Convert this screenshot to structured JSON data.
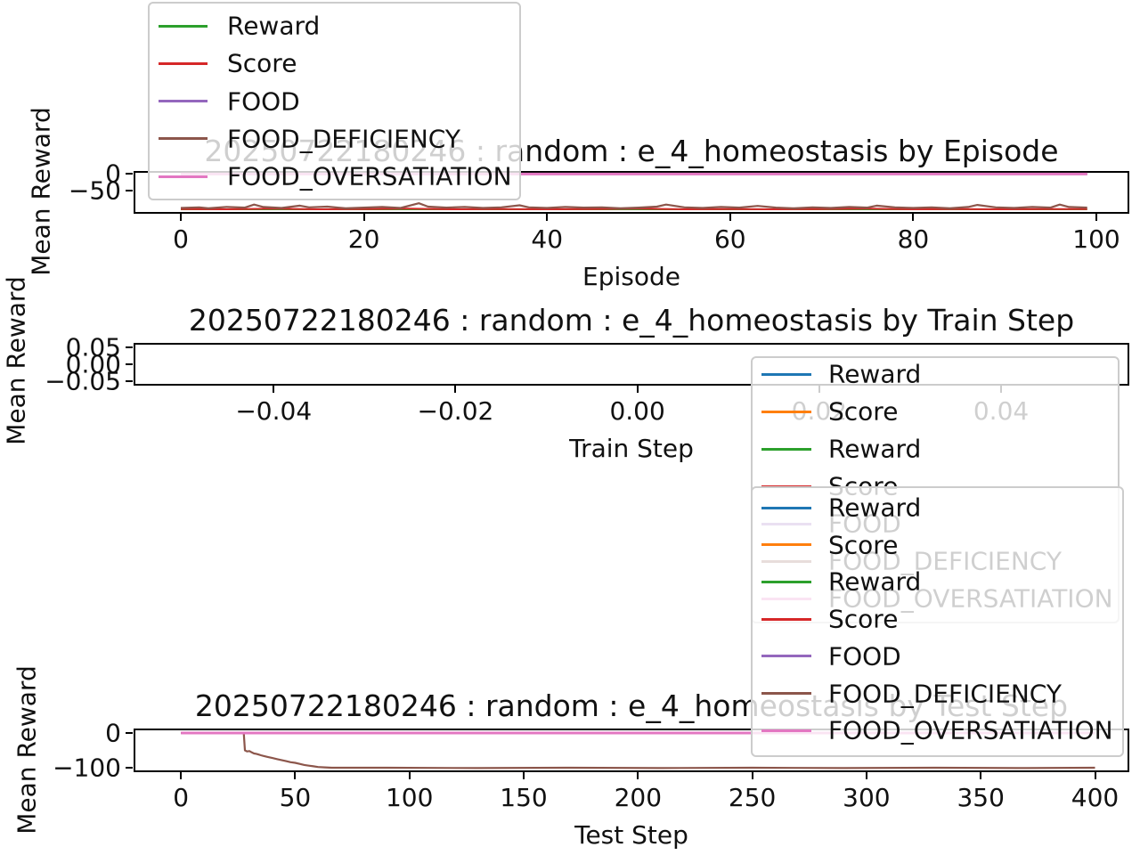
{
  "colors": {
    "blue": "#1f77b4",
    "orange": "#ff7f0e",
    "green": "#2ca02c",
    "red": "#d62728",
    "purple": "#9467bd",
    "brown": "#8c564b",
    "pink": "#e377c2",
    "spine": "#000000",
    "faded_text": "#c9c9c9",
    "legend_border": "#cccccc"
  },
  "chart_data": [
    {
      "id": "by-episode",
      "type": "line",
      "title": "20250722180246 : random : e_4_homeostasis by Episode",
      "xlabel": "Episode",
      "ylabel": "Mean Reward",
      "xlim": [
        -5.16,
        103.6
      ],
      "ylim": [
        -117,
        9
      ],
      "grid": false,
      "xticks": [
        {
          "v": 0,
          "label": "0"
        },
        {
          "v": 20,
          "label": "20"
        },
        {
          "v": 40,
          "label": "40"
        },
        {
          "v": 60,
          "label": "60"
        },
        {
          "v": 80,
          "label": "80"
        },
        {
          "v": 100,
          "label": "100"
        }
      ],
      "yticks": [
        {
          "v": 0,
          "label": "0"
        },
        {
          "v": -50,
          "label": "−50"
        }
      ],
      "legend": {
        "loc": "upper left",
        "entries": [
          {
            "label": "Reward",
            "color": "green"
          },
          {
            "label": "Score",
            "color": "red"
          },
          {
            "label": "FOOD",
            "color": "purple"
          },
          {
            "label": "FOOD_DEFICIENCY",
            "color": "brown"
          },
          {
            "label": "FOOD_OVERSATIATION",
            "color": "pink"
          }
        ]
      },
      "series": [
        {
          "name": "Reward",
          "color": "blue",
          "lw": 2,
          "points": [
            [
              0,
              0
            ],
            [
              99,
              0
            ]
          ]
        },
        {
          "name": "Score",
          "color": "orange",
          "lw": 2,
          "points": [
            [
              0,
              0
            ],
            [
              99,
              0
            ]
          ]
        },
        {
          "name": "Reward",
          "color": "green",
          "lw": 2,
          "points": [
            [
              0,
              -104
            ],
            [
              99,
              -104
            ]
          ]
        },
        {
          "name": "Score",
          "color": "red",
          "lw": 2,
          "points": [
            [
              0,
              -103
            ],
            [
              5,
              -104
            ],
            [
              10,
              -102
            ],
            [
              15,
              -104
            ],
            [
              20,
              -103
            ],
            [
              25,
              -102
            ],
            [
              30,
              -104
            ],
            [
              35,
              -103
            ],
            [
              40,
              -104
            ],
            [
              45,
              -103
            ],
            [
              50,
              -102
            ],
            [
              55,
              -104
            ],
            [
              60,
              -103
            ],
            [
              65,
              -104
            ],
            [
              70,
              -103
            ],
            [
              75,
              -102
            ],
            [
              80,
              -104
            ],
            [
              85,
              -103
            ],
            [
              90,
              -104
            ],
            [
              95,
              -103
            ],
            [
              99,
              -103
            ]
          ]
        },
        {
          "name": "FOOD",
          "color": "purple",
          "lw": 2,
          "points": [
            [
              0,
              0
            ],
            [
              99,
              0
            ]
          ]
        },
        {
          "name": "FOOD_DEFICIENCY",
          "color": "brown",
          "lw": 2.2,
          "points": [
            [
              0,
              -100
            ],
            [
              2,
              -98
            ],
            [
              3,
              -101
            ],
            [
              5,
              -97
            ],
            [
              7,
              -99
            ],
            [
              8,
              -90
            ],
            [
              9,
              -97
            ],
            [
              11,
              -100
            ],
            [
              13,
              -93
            ],
            [
              14,
              -98
            ],
            [
              16,
              -96
            ],
            [
              18,
              -101
            ],
            [
              20,
              -99
            ],
            [
              22,
              -97
            ],
            [
              24,
              -100
            ],
            [
              26,
              -86
            ],
            [
              27,
              -96
            ],
            [
              29,
              -99
            ],
            [
              31,
              -97
            ],
            [
              33,
              -100
            ],
            [
              35,
              -98
            ],
            [
              37,
              -92
            ],
            [
              38,
              -98
            ],
            [
              40,
              -100
            ],
            [
              42,
              -97
            ],
            [
              44,
              -99
            ],
            [
              46,
              -98
            ],
            [
              48,
              -101
            ],
            [
              50,
              -99
            ],
            [
              52,
              -96
            ],
            [
              53,
              -90
            ],
            [
              55,
              -98
            ],
            [
              57,
              -100
            ],
            [
              59,
              -97
            ],
            [
              61,
              -99
            ],
            [
              63,
              -94
            ],
            [
              65,
              -99
            ],
            [
              67,
              -101
            ],
            [
              69,
              -98
            ],
            [
              71,
              -100
            ],
            [
              73,
              -97
            ],
            [
              75,
              -99
            ],
            [
              76,
              -93
            ],
            [
              78,
              -98
            ],
            [
              80,
              -100
            ],
            [
              82,
              -98
            ],
            [
              84,
              -101
            ],
            [
              86,
              -97
            ],
            [
              87,
              -91
            ],
            [
              89,
              -98
            ],
            [
              91,
              -100
            ],
            [
              93,
              -97
            ],
            [
              95,
              -99
            ],
            [
              96,
              -90
            ],
            [
              97,
              -97
            ],
            [
              99,
              -99
            ]
          ]
        },
        {
          "name": "FOOD_OVERSATIATION",
          "color": "pink",
          "lw": 3,
          "points": [
            [
              0,
              0
            ],
            [
              99,
              0
            ]
          ]
        }
      ]
    },
    {
      "id": "by-train-step",
      "type": "line",
      "title": "20250722180246 : random : e_4_homeostasis by Train Step",
      "xlabel": "Train Step",
      "ylabel": "Mean Reward",
      "xlim": [
        -0.0554,
        0.0541
      ],
      "ylim": [
        -0.063,
        0.063
      ],
      "grid": false,
      "xticks": [
        {
          "v": -0.04,
          "label": "−0.04"
        },
        {
          "v": -0.02,
          "label": "−0.02"
        },
        {
          "v": 0.0,
          "label": "0.00"
        },
        {
          "v": 0.02,
          "label": "0.02"
        },
        {
          "v": 0.04,
          "label": "0.04"
        }
      ],
      "yticks": [
        {
          "v": 0.05,
          "label": "0.05"
        },
        {
          "v": 0.0,
          "label": "0.00"
        },
        {
          "v": -0.05,
          "label": "−0.05"
        }
      ],
      "legend": {
        "loc": "right",
        "entries": [
          {
            "label": "Reward",
            "color": "blue"
          },
          {
            "label": "Score",
            "color": "orange"
          },
          {
            "label": "Reward",
            "color": "green"
          },
          {
            "label": "Score",
            "color": "red"
          },
          {
            "label": "FOOD",
            "color": "purple"
          },
          {
            "label": "FOOD_DEFICIENCY",
            "color": "brown"
          },
          {
            "label": "FOOD_OVERSATIATION",
            "color": "pink"
          }
        ]
      },
      "series": []
    },
    {
      "id": "by-test-step",
      "type": "line",
      "title": "20250722180246 : random : e_4_homeostasis by Test Step",
      "xlabel": "Test Step",
      "ylabel": "Mean Reward",
      "xlim": [
        -20.7,
        415
      ],
      "ylim": [
        -112.8,
        12.8
      ],
      "grid": false,
      "xticks": [
        {
          "v": 0,
          "label": "0"
        },
        {
          "v": 50,
          "label": "50"
        },
        {
          "v": 100,
          "label": "100"
        },
        {
          "v": 150,
          "label": "150"
        },
        {
          "v": 200,
          "label": "200"
        },
        {
          "v": 250,
          "label": "250"
        },
        {
          "v": 300,
          "label": "300"
        },
        {
          "v": 350,
          "label": "350"
        },
        {
          "v": 400,
          "label": "400"
        }
      ],
      "yticks": [
        {
          "v": 0,
          "label": "0"
        },
        {
          "v": -100,
          "label": "−100"
        }
      ],
      "legend": {
        "loc": "right",
        "entries": [
          {
            "label": "Reward",
            "color": "blue"
          },
          {
            "label": "Score",
            "color": "orange"
          },
          {
            "label": "Reward",
            "color": "green"
          },
          {
            "label": "Score",
            "color": "red"
          },
          {
            "label": "FOOD",
            "color": "purple"
          },
          {
            "label": "FOOD_DEFICIENCY",
            "color": "brown"
          },
          {
            "label": "FOOD_OVERSATIATION",
            "color": "pink"
          }
        ]
      },
      "series": [
        {
          "name": "Reward",
          "color": "blue",
          "lw": 2,
          "points": [
            [
              0,
              0
            ],
            [
              400,
              0
            ]
          ]
        },
        {
          "name": "Score",
          "color": "orange",
          "lw": 2,
          "points": [
            [
              0,
              0
            ],
            [
              400,
              0
            ]
          ]
        },
        {
          "name": "Reward",
          "color": "green",
          "lw": 2,
          "points": [
            [
              0,
              0
            ],
            [
              400,
              0
            ]
          ]
        },
        {
          "name": "Score",
          "color": "red",
          "lw": 2,
          "points": [
            [
              0,
              0
            ],
            [
              400,
              0
            ]
          ]
        },
        {
          "name": "FOOD",
          "color": "purple",
          "lw": 2,
          "points": [
            [
              0,
              0
            ],
            [
              400,
              0
            ]
          ]
        },
        {
          "name": "FOOD_DEFICIENCY",
          "color": "brown",
          "lw": 2.2,
          "points": [
            [
              0,
              0
            ],
            [
              27.5,
              0
            ],
            [
              28,
              -50
            ],
            [
              29,
              -53
            ],
            [
              30,
              -52
            ],
            [
              31,
              -56
            ],
            [
              32,
              -59
            ],
            [
              33,
              -60
            ],
            [
              34,
              -62
            ],
            [
              35,
              -64
            ],
            [
              36,
              -66
            ],
            [
              38,
              -69
            ],
            [
              40,
              -72
            ],
            [
              42,
              -75
            ],
            [
              44,
              -78
            ],
            [
              46,
              -81
            ],
            [
              48,
              -84
            ],
            [
              50,
              -86
            ],
            [
              52,
              -89
            ],
            [
              54,
              -92
            ],
            [
              56,
              -94
            ],
            [
              58,
              -96
            ],
            [
              60,
              -98
            ],
            [
              63,
              -99
            ],
            [
              66,
              -100
            ],
            [
              90,
              -100
            ],
            [
              130,
              -101
            ],
            [
              170,
              -100
            ],
            [
              210,
              -101
            ],
            [
              250,
              -100
            ],
            [
              290,
              -101
            ],
            [
              330,
              -100
            ],
            [
              370,
              -101
            ],
            [
              400,
              -100
            ]
          ]
        },
        {
          "name": "FOOD_OVERSATIATION",
          "color": "pink",
          "lw": 3,
          "points": [
            [
              0,
              0
            ],
            [
              400,
              0
            ]
          ]
        }
      ]
    }
  ]
}
